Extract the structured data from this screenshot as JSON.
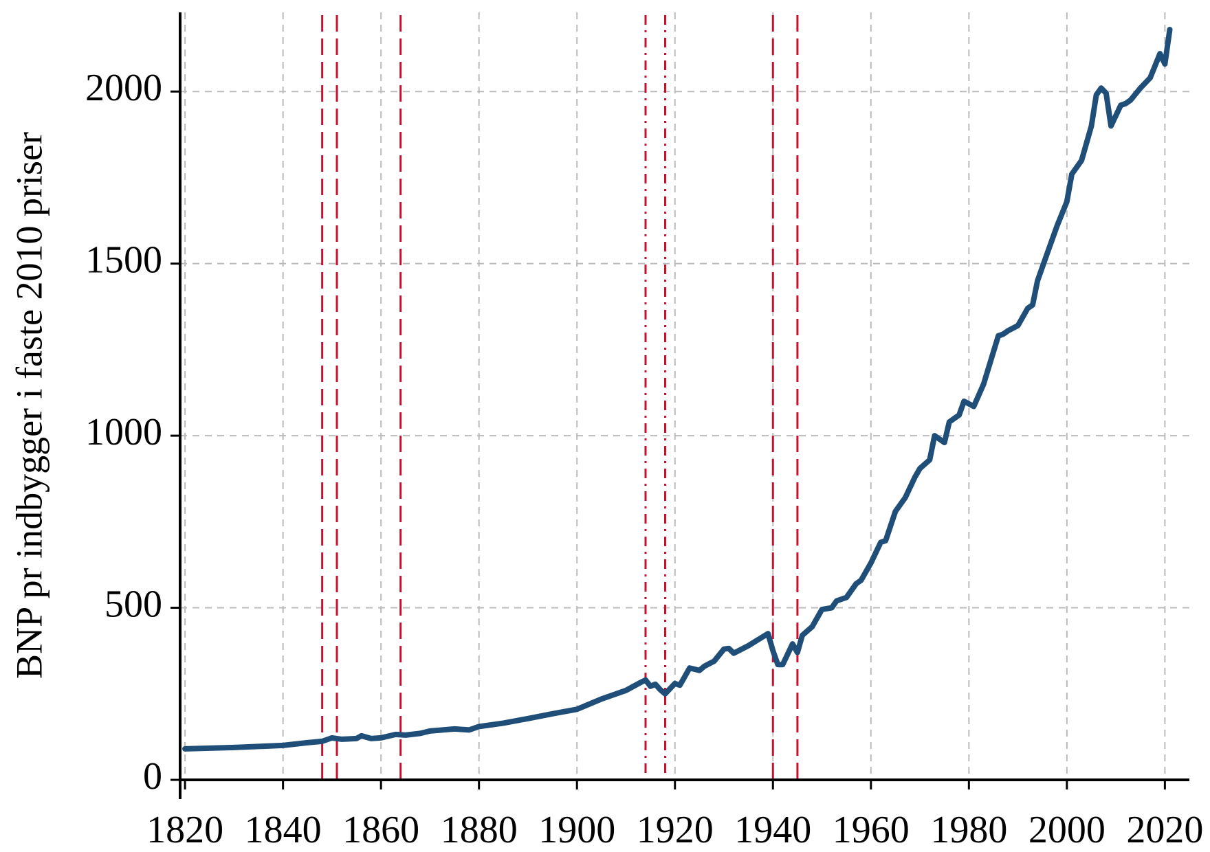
{
  "chart_data": {
    "type": "line",
    "ylabel": "BNP pr indbygger i faste 2010 priser",
    "x": [
      1820,
      1825,
      1830,
      1835,
      1840,
      1845,
      1848,
      1850,
      1852,
      1855,
      1856,
      1858,
      1860,
      1863,
      1865,
      1868,
      1870,
      1875,
      1878,
      1880,
      1885,
      1890,
      1895,
      1900,
      1905,
      1910,
      1913,
      1914,
      1915,
      1916,
      1917,
      1918,
      1920,
      1921,
      1923,
      1925,
      1926,
      1928,
      1930,
      1931,
      1932,
      1935,
      1939,
      1940,
      1941,
      1942,
      1944,
      1945,
      1946,
      1948,
      1950,
      1952,
      1953,
      1955,
      1957,
      1958,
      1960,
      1962,
      1963,
      1965,
      1967,
      1969,
      1970,
      1972,
      1973,
      1975,
      1976,
      1978,
      1979,
      1981,
      1983,
      1986,
      1987,
      1988,
      1990,
      1992,
      1993,
      1994,
      1996,
      1998,
      2000,
      2001,
      2003,
      2005,
      2006,
      2007,
      2008,
      2009,
      2011,
      2012,
      2013,
      2015,
      2017,
      2019,
      2020,
      2021
    ],
    "values": [
      90,
      92,
      94,
      97,
      100,
      108,
      112,
      122,
      118,
      120,
      128,
      120,
      122,
      132,
      130,
      135,
      142,
      148,
      145,
      155,
      165,
      178,
      192,
      205,
      235,
      260,
      283,
      290,
      272,
      278,
      262,
      250,
      280,
      275,
      325,
      318,
      330,
      345,
      380,
      382,
      368,
      390,
      425,
      375,
      335,
      335,
      395,
      370,
      420,
      445,
      495,
      500,
      520,
      530,
      570,
      580,
      630,
      690,
      695,
      780,
      820,
      880,
      905,
      930,
      1000,
      980,
      1040,
      1060,
      1100,
      1085,
      1150,
      1290,
      1295,
      1305,
      1320,
      1370,
      1380,
      1450,
      1530,
      1610,
      1680,
      1760,
      1800,
      1900,
      1990,
      2010,
      1995,
      1900,
      1960,
      1965,
      1975,
      2010,
      2040,
      2110,
      2080,
      2180
    ],
    "color": "#1f4e79",
    "xlim": [
      1819,
      2025
    ],
    "xticks": [
      1820,
      1840,
      1860,
      1880,
      1900,
      1920,
      1940,
      1960,
      1980,
      2000,
      2020
    ],
    "ylim": [
      0,
      2230
    ],
    "yticks": [
      0,
      500,
      1000,
      1500,
      2000
    ],
    "grid": true,
    "vline_color": "#c8102e",
    "vlines": [
      {
        "x": 1848,
        "style": "dashed"
      },
      {
        "x": 1851,
        "style": "dashed"
      },
      {
        "x": 1864,
        "style": "dashed"
      },
      {
        "x": 1914,
        "style": "dashdot"
      },
      {
        "x": 1918,
        "style": "dashdot"
      },
      {
        "x": 1940,
        "style": "dashed"
      },
      {
        "x": 1945,
        "style": "dashed"
      }
    ]
  }
}
